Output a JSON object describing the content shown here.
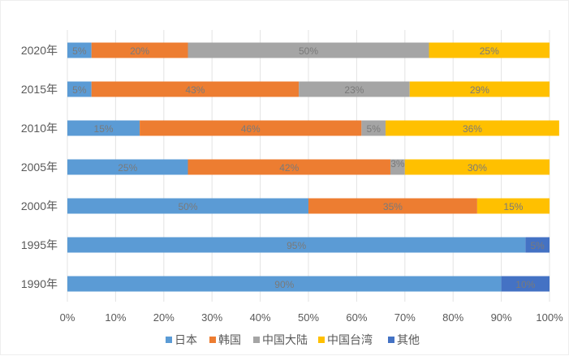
{
  "chart_data": {
    "type": "bar",
    "orientation": "horizontal",
    "stacked": true,
    "percent": true,
    "categories": [
      "1990年",
      "1995年",
      "2000年",
      "2005年",
      "2010年",
      "2015年",
      "2020年"
    ],
    "series": [
      {
        "name": "日本",
        "color": "#5B9BD5",
        "values": [
          90,
          95,
          50,
          25,
          15,
          5,
          5
        ],
        "labels": [
          "90%",
          "95%",
          "50%",
          "25%",
          "15%",
          "5%",
          "5%"
        ]
      },
      {
        "name": "韩国",
        "color": "#ED7D31",
        "values": [
          0,
          0,
          35,
          42,
          46,
          43,
          20
        ],
        "labels": [
          "",
          "",
          "35%",
          "42%",
          "46%",
          "43%",
          "20%"
        ]
      },
      {
        "name": "中国大陆",
        "color": "#A5A5A5",
        "values": [
          0,
          0,
          0,
          3,
          5,
          23,
          50
        ],
        "labels": [
          "",
          "",
          "",
          "3%",
          "5%",
          "23%",
          "50%"
        ]
      },
      {
        "name": "中国台湾",
        "color": "#FFC000",
        "values": [
          0,
          0,
          15,
          30,
          36,
          29,
          25
        ],
        "labels": [
          "",
          "",
          "15%",
          "30%",
          "36%",
          "29%",
          "25%"
        ]
      },
      {
        "name": "其他",
        "color": "#4472C4",
        "values": [
          10,
          5,
          0,
          0,
          0,
          0,
          0
        ],
        "labels": [
          "10%",
          "5%",
          "",
          "",
          "",
          "",
          ""
        ]
      }
    ],
    "xticks": [
      "0%",
      "10%",
      "20%",
      "30%",
      "40%",
      "50%",
      "60%",
      "70%",
      "80%",
      "90%",
      "100%"
    ],
    "xlim": [
      0,
      100
    ],
    "legend_position": "bottom",
    "grid": true
  }
}
